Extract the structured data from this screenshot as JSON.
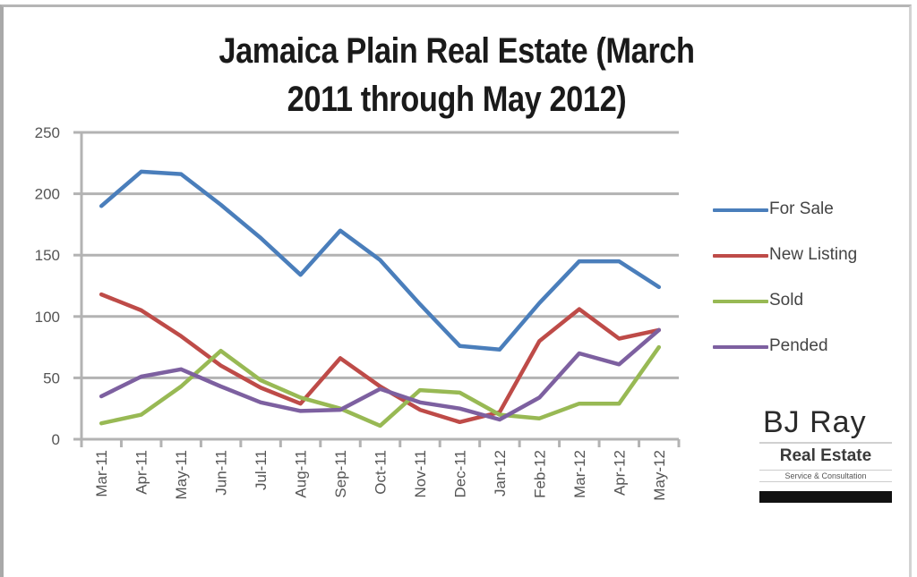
{
  "chart_data": {
    "type": "line",
    "title": "Jamaica Plain Real Estate (March 2011 through May 2012)",
    "title_lines": [
      "Jamaica Plain Real Estate (March",
      "2011 through May 2012)"
    ],
    "xlabel": "",
    "ylabel": "",
    "ylim": [
      0,
      250
    ],
    "yticks": [
      0,
      50,
      100,
      150,
      200,
      250
    ],
    "grid": true,
    "legend_position": "right",
    "categories": [
      "Mar-11",
      "Apr-11",
      "May-11",
      "Jun-11",
      "Jul-11",
      "Aug-11",
      "Sep-11",
      "Oct-11",
      "Nov-11",
      "Dec-11",
      "Jan-12",
      "Feb-12",
      "Mar-12",
      "Apr-12",
      "May-12"
    ],
    "series": [
      {
        "name": "For Sale",
        "color": "#4a7ebb",
        "values": [
          190,
          218,
          216,
          191,
          164,
          134,
          170,
          146,
          110,
          76,
          73,
          111,
          145,
          145,
          124
        ]
      },
      {
        "name": "New Listing",
        "color": "#be4b48",
        "values": [
          118,
          105,
          84,
          60,
          42,
          29,
          66,
          43,
          24,
          14,
          22,
          80,
          106,
          82,
          89
        ]
      },
      {
        "name": "Sold",
        "color": "#98b954",
        "values": [
          13,
          20,
          43,
          72,
          48,
          34,
          25,
          11,
          40,
          38,
          20,
          17,
          29,
          29,
          75
        ]
      },
      {
        "name": "Pended",
        "color": "#7d60a0",
        "values": [
          35,
          51,
          57,
          43,
          30,
          23,
          24,
          41,
          30,
          25,
          16,
          34,
          70,
          61,
          89
        ]
      }
    ]
  },
  "logo": {
    "name": "BJ Ray",
    "subtitle": "Real Estate",
    "tagline": "Service & Consultation"
  }
}
